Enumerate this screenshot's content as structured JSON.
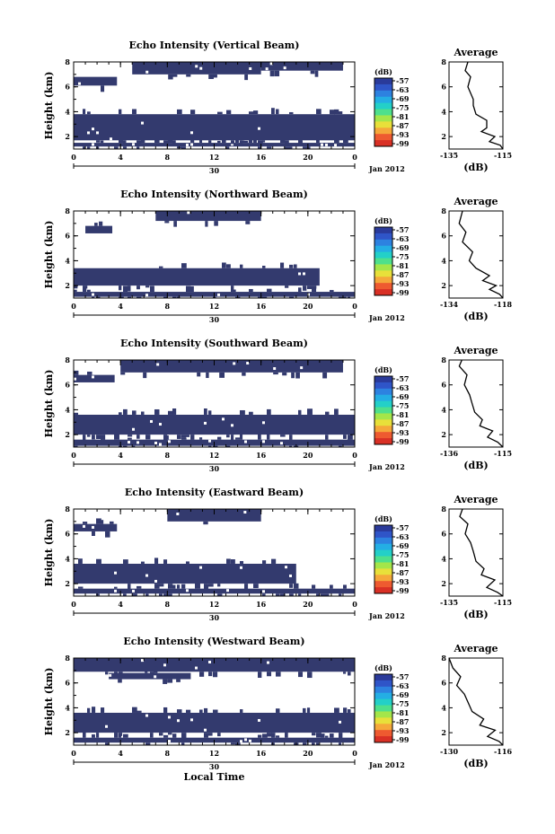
{
  "colors": {
    "echo_fill": "#333a6e",
    "colorbar": [
      "#2a3a9a",
      "#2f55c8",
      "#2d82e0",
      "#24aee4",
      "#23d0c8",
      "#4ee08c",
      "#a4e64a",
      "#e8e03a",
      "#f5a83a",
      "#ee5a30",
      "#d93025"
    ]
  },
  "chart_data": [
    {
      "type": "heatmap",
      "title": "Echo Intensity (Vertical Beam)",
      "ylabel": "Height (km)",
      "xlabel": "",
      "x_ticks": [
        "0",
        "4",
        "8",
        "12",
        "16",
        "20",
        "0"
      ],
      "x_range_hours": [
        0,
        24
      ],
      "date_tick": "30",
      "date_label": "Jan 2012",
      "y_ticks": [
        "2",
        "4",
        "6",
        "8"
      ],
      "y_range_km": [
        1,
        8
      ],
      "colorbar_unit": "(dB)",
      "colorbar_ticks": [
        "-57",
        "-63",
        "-69",
        "-75",
        "-81",
        "-87",
        "-93",
        "-99"
      ],
      "echo_bands": [
        {
          "t": [
            0,
            24
          ],
          "h": [
            1.2,
            1.5
          ]
        },
        {
          "t": [
            0,
            24
          ],
          "h": [
            1.7,
            3.8
          ]
        },
        {
          "t": [
            0,
            3.7
          ],
          "h": [
            6.1,
            6.8
          ]
        },
        {
          "t": [
            5,
            16
          ],
          "h": [
            7.0,
            8.0
          ]
        },
        {
          "t": [
            16,
            23
          ],
          "h": [
            7.3,
            8.0
          ]
        }
      ],
      "average_profile": {
        "title": "Average",
        "xlabel": "(dB)",
        "x_ticks": [
          "-135",
          "-115"
        ],
        "x_range": [
          -135,
          -115
        ],
        "y_ticks": [
          "2",
          "4",
          "6",
          "8"
        ],
        "y_range_km": [
          1,
          8
        ],
        "profile": [
          [
            -115,
            1.0
          ],
          [
            -116,
            1.3
          ],
          [
            -120,
            1.6
          ],
          [
            -118,
            2.0
          ],
          [
            -123,
            2.4
          ],
          [
            -121,
            2.7
          ],
          [
            -121,
            3.3
          ],
          [
            -125,
            3.8
          ],
          [
            -126,
            4.5
          ],
          [
            -126,
            5.0
          ],
          [
            -128,
            6.0
          ],
          [
            -127,
            6.8
          ],
          [
            -129,
            7.3
          ],
          [
            -128,
            8.0
          ]
        ]
      }
    },
    {
      "type": "heatmap",
      "title": "Echo Intensity (Northward Beam)",
      "ylabel": "Height (km)",
      "xlabel": "",
      "x_ticks": [
        "0",
        "4",
        "8",
        "12",
        "16",
        "20",
        "0"
      ],
      "x_range_hours": [
        0,
        24
      ],
      "date_tick": "30",
      "date_label": "Jan 2012",
      "y_ticks": [
        "2",
        "4",
        "6",
        "8"
      ],
      "y_range_km": [
        1,
        8
      ],
      "colorbar_unit": "(dB)",
      "colorbar_ticks": [
        "-57",
        "-63",
        "-69",
        "-75",
        "-81",
        "-87",
        "-93",
        "-99"
      ],
      "echo_bands": [
        {
          "t": [
            0,
            24
          ],
          "h": [
            1.1,
            1.5
          ]
        },
        {
          "t": [
            0,
            21
          ],
          "h": [
            2.0,
            3.4
          ]
        },
        {
          "t": [
            1,
            3.3
          ],
          "h": [
            6.2,
            6.8
          ]
        },
        {
          "t": [
            7,
            16
          ],
          "h": [
            7.2,
            8.0
          ]
        }
      ],
      "average_profile": {
        "title": "Average",
        "xlabel": "(dB)",
        "x_ticks": [
          "-134",
          "-118"
        ],
        "x_range": [
          -134,
          -118
        ],
        "y_ticks": [
          "2",
          "4",
          "6",
          "8"
        ],
        "y_range_km": [
          1,
          8
        ],
        "profile": [
          [
            -118,
            1.0
          ],
          [
            -119,
            1.3
          ],
          [
            -122,
            1.7
          ],
          [
            -120,
            2.0
          ],
          [
            -124,
            2.4
          ],
          [
            -122,
            2.8
          ],
          [
            -126,
            3.4
          ],
          [
            -128,
            4.0
          ],
          [
            -127,
            4.7
          ],
          [
            -130,
            5.5
          ],
          [
            -129,
            6.3
          ],
          [
            -131,
            7.0
          ],
          [
            -130,
            8.0
          ]
        ]
      }
    },
    {
      "type": "heatmap",
      "title": "Echo Intensity (Southward Beam)",
      "ylabel": "Height (km)",
      "xlabel": "",
      "x_ticks": [
        "0",
        "4",
        "8",
        "12",
        "16",
        "20",
        "0"
      ],
      "x_range_hours": [
        0,
        24
      ],
      "date_tick": "30",
      "date_label": "Jan 2012",
      "y_ticks": [
        "2",
        "4",
        "6",
        "8"
      ],
      "y_range_km": [
        1,
        8
      ],
      "colorbar_unit": "(dB)",
      "colorbar_ticks": [
        "-57",
        "-63",
        "-69",
        "-75",
        "-81",
        "-87",
        "-93",
        "-99"
      ],
      "echo_bands": [
        {
          "t": [
            0,
            24
          ],
          "h": [
            1.1,
            1.6
          ]
        },
        {
          "t": [
            0,
            24
          ],
          "h": [
            2.0,
            3.6
          ]
        },
        {
          "t": [
            0,
            3.5
          ],
          "h": [
            6.2,
            6.8
          ]
        },
        {
          "t": [
            4,
            23
          ],
          "h": [
            7.0,
            8.0
          ]
        }
      ],
      "average_profile": {
        "title": "Average",
        "xlabel": "(dB)",
        "x_ticks": [
          "-136",
          "-115"
        ],
        "x_range": [
          -136,
          -115
        ],
        "y_ticks": [
          "2",
          "4",
          "6",
          "8"
        ],
        "y_range_km": [
          1,
          8
        ],
        "profile": [
          [
            -115,
            1.0
          ],
          [
            -117,
            1.4
          ],
          [
            -121,
            1.8
          ],
          [
            -119,
            2.3
          ],
          [
            -124,
            2.7
          ],
          [
            -123,
            3.2
          ],
          [
            -126,
            3.8
          ],
          [
            -127,
            4.5
          ],
          [
            -128,
            5.2
          ],
          [
            -130,
            6.0
          ],
          [
            -129,
            6.8
          ],
          [
            -132,
            7.5
          ],
          [
            -131,
            8.0
          ]
        ]
      }
    },
    {
      "type": "heatmap",
      "title": "Echo Intensity (Eastward Beam)",
      "ylabel": "Height (km)",
      "xlabel": "",
      "x_ticks": [
        "0",
        "4",
        "8",
        "12",
        "16",
        "20",
        "0"
      ],
      "x_range_hours": [
        0,
        24
      ],
      "date_tick": "30",
      "date_label": "Jan 2012",
      "y_ticks": [
        "2",
        "4",
        "6",
        "8"
      ],
      "y_range_km": [
        1,
        8
      ],
      "colorbar_unit": "(dB)",
      "colorbar_ticks": [
        "-57",
        "-63",
        "-69",
        "-75",
        "-81",
        "-87",
        "-93",
        "-99"
      ],
      "echo_bands": [
        {
          "t": [
            0,
            24
          ],
          "h": [
            1.2,
            1.6
          ]
        },
        {
          "t": [
            0,
            19
          ],
          "h": [
            2.0,
            3.6
          ]
        },
        {
          "t": [
            0,
            3.7
          ],
          "h": [
            6.2,
            6.8
          ]
        },
        {
          "t": [
            8,
            16
          ],
          "h": [
            7.0,
            8.0
          ]
        }
      ],
      "average_profile": {
        "title": "Average",
        "xlabel": "(dB)",
        "x_ticks": [
          "-135",
          "-115"
        ],
        "x_range": [
          -135,
          -115
        ],
        "y_ticks": [
          "2",
          "4",
          "6",
          "8"
        ],
        "y_range_km": [
          1,
          8
        ],
        "profile": [
          [
            -115,
            1.0
          ],
          [
            -117,
            1.3
          ],
          [
            -121,
            1.7
          ],
          [
            -118,
            2.3
          ],
          [
            -123,
            2.7
          ],
          [
            -122,
            3.2
          ],
          [
            -125,
            3.8
          ],
          [
            -126,
            4.6
          ],
          [
            -127,
            5.3
          ],
          [
            -129,
            6.0
          ],
          [
            -128,
            6.8
          ],
          [
            -131,
            7.4
          ],
          [
            -130,
            8.0
          ]
        ]
      }
    },
    {
      "type": "heatmap",
      "title": "Echo Intensity (Westward Beam)",
      "ylabel": "Height (km)",
      "xlabel": "Local Time",
      "x_ticks": [
        "0",
        "4",
        "8",
        "12",
        "16",
        "20",
        "0"
      ],
      "x_range_hours": [
        0,
        24
      ],
      "date_tick": "30",
      "date_label": "Jan 2012",
      "y_ticks": [
        "2",
        "4",
        "6",
        "8"
      ],
      "y_range_km": [
        1,
        8
      ],
      "colorbar_unit": "(dB)",
      "colorbar_ticks": [
        "-57",
        "-63",
        "-69",
        "-75",
        "-81",
        "-87",
        "-93",
        "-99"
      ],
      "echo_bands": [
        {
          "t": [
            0,
            24
          ],
          "h": [
            1.2,
            1.6
          ]
        },
        {
          "t": [
            0,
            24
          ],
          "h": [
            2.0,
            3.6
          ]
        },
        {
          "t": [
            0,
            24
          ],
          "h": [
            6.9,
            8.0
          ]
        },
        {
          "t": [
            3,
            10
          ],
          "h": [
            6.3,
            6.8
          ]
        }
      ],
      "average_profile": {
        "title": "Average",
        "xlabel": "(dB)",
        "x_ticks": [
          "-130",
          "-116"
        ],
        "x_range": [
          -130,
          -116
        ],
        "y_ticks": [
          "2",
          "4",
          "6",
          "8"
        ],
        "y_range_km": [
          1,
          8
        ],
        "profile": [
          [
            -116,
            1.0
          ],
          [
            -117,
            1.3
          ],
          [
            -120,
            1.7
          ],
          [
            -118,
            2.2
          ],
          [
            -122,
            2.6
          ],
          [
            -121,
            3.1
          ],
          [
            -124,
            3.7
          ],
          [
            -125,
            4.4
          ],
          [
            -126,
            5.1
          ],
          [
            -128,
            5.8
          ],
          [
            -127,
            6.5
          ],
          [
            -129,
            7.2
          ],
          [
            -130,
            8.0
          ]
        ]
      }
    }
  ]
}
